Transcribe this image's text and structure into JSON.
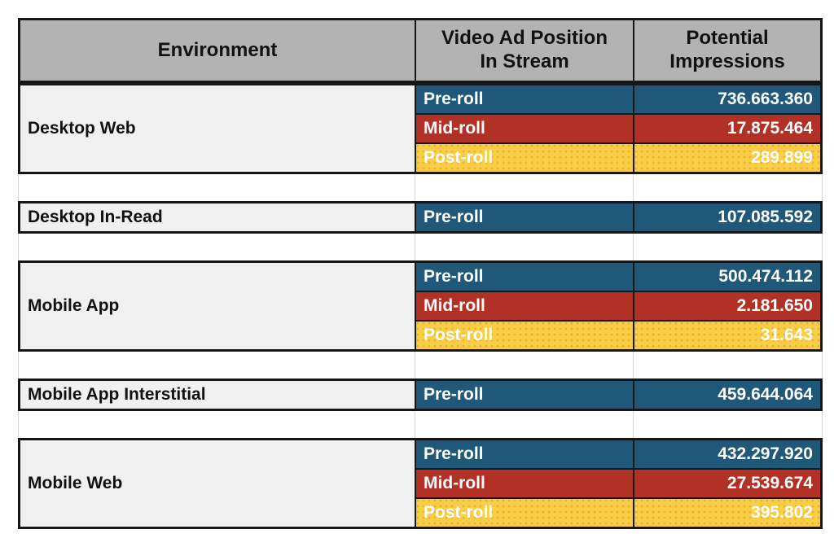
{
  "colors": {
    "header_bg": "#b3b3b3",
    "environment_bg": "#f0f0f0",
    "pre_roll": "#1f5878",
    "mid_roll": "#b23127",
    "post_roll": "#f9ce44",
    "border": "#161616",
    "gridline": "#d8d8d8",
    "cell_text": "#ffffff",
    "header_text": "#111111"
  },
  "table": {
    "columns": [
      {
        "label": "Environment"
      },
      {
        "line1": "Video Ad Position",
        "line2": "In Stream"
      },
      {
        "line1": "Potential",
        "line2": "Impressions"
      }
    ],
    "sections": [
      {
        "environment": "Desktop Web",
        "rows": [
          {
            "position": "Pre-roll",
            "impressions": "736.663.360"
          },
          {
            "position": "Mid-roll",
            "impressions": "17.875.464"
          },
          {
            "position": "Post-roll",
            "impressions": "289.899"
          }
        ]
      },
      {
        "environment": "Desktop In-Read",
        "rows": [
          {
            "position": "Pre-roll",
            "impressions": "107.085.592"
          }
        ]
      },
      {
        "environment": "Mobile App",
        "rows": [
          {
            "position": "Pre-roll",
            "impressions": "500.474.112"
          },
          {
            "position": "Mid-roll",
            "impressions": "2.181.650"
          },
          {
            "position": "Post-roll",
            "impressions": "31.643"
          }
        ]
      },
      {
        "environment": "Mobile App Interstitial",
        "rows": [
          {
            "position": "Pre-roll",
            "impressions": "459.644.064"
          }
        ]
      },
      {
        "environment": "Mobile Web",
        "rows": [
          {
            "position": "Pre-roll",
            "impressions": "432.297.920"
          },
          {
            "position": "Mid-roll",
            "impressions": "27.539.674"
          },
          {
            "position": "Post-roll",
            "impressions": "395.802"
          }
        ]
      }
    ]
  },
  "chart_data": {
    "type": "table",
    "columns": [
      "Environment",
      "Video Ad Position In Stream",
      "Potential Impressions"
    ],
    "rows": [
      [
        "Desktop Web",
        "Pre-roll",
        "736.663.360"
      ],
      [
        "Desktop Web",
        "Mid-roll",
        "17.875.464"
      ],
      [
        "Desktop Web",
        "Post-roll",
        "289.899"
      ],
      [
        "Desktop In-Read",
        "Pre-roll",
        "107.085.592"
      ],
      [
        "Mobile App",
        "Pre-roll",
        "500.474.112"
      ],
      [
        "Mobile App",
        "Mid-roll",
        "2.181.650"
      ],
      [
        "Mobile App",
        "Post-roll",
        "31.643"
      ],
      [
        "Mobile App Interstitial",
        "Pre-roll",
        "459.644.064"
      ],
      [
        "Mobile Web",
        "Pre-roll",
        "432.297.920"
      ],
      [
        "Mobile Web",
        "Mid-roll",
        "27.539.674"
      ],
      [
        "Mobile Web",
        "Post-roll",
        "395.802"
      ]
    ]
  }
}
